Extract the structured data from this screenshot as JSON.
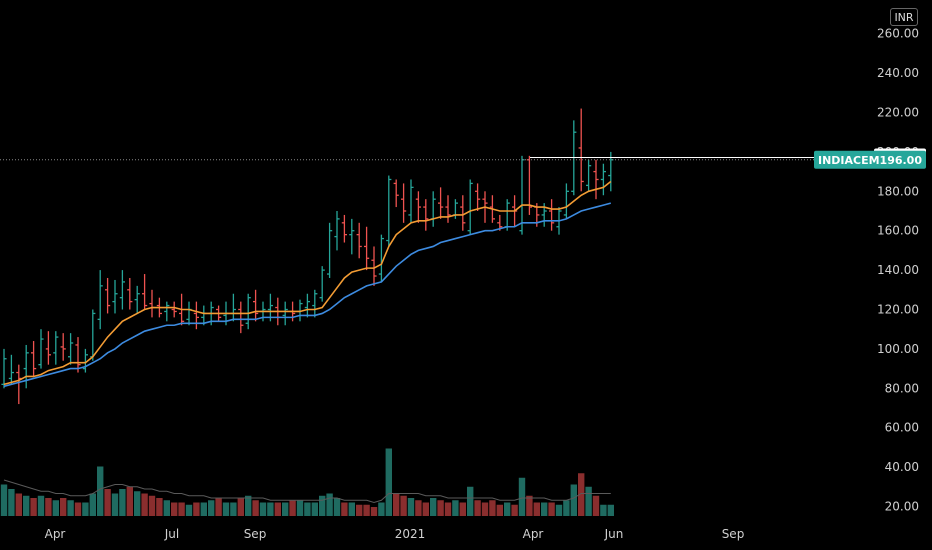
{
  "currency": "INR",
  "ticker": "INDIACEM",
  "last_price_label": "196.00",
  "level_label": "197.15",
  "chart_data": {
    "type": "ohlc",
    "ylim": [
      14,
      266
    ],
    "yticks": [
      "260.00",
      "240.00",
      "220.00",
      "200.00",
      "180.00",
      "160.00",
      "140.00",
      "120.00",
      "100.00",
      "80.00",
      "60.00",
      "40.00",
      "20.00"
    ],
    "xticks": [
      "Apr",
      "Jul",
      "Sep",
      "2021",
      "Apr",
      "Jun",
      "Sep"
    ],
    "ohlc": [
      [
        82,
        100,
        80,
        95
      ],
      [
        85,
        97,
        82,
        88
      ],
      [
        88,
        92,
        72,
        85
      ],
      [
        90,
        102,
        80,
        98
      ],
      [
        98,
        104,
        86,
        90
      ],
      [
        92,
        110,
        90,
        105
      ],
      [
        100,
        109,
        92,
        97
      ],
      [
        98,
        109,
        92,
        106
      ],
      [
        101,
        108,
        94,
        100
      ],
      [
        96,
        108,
        92,
        103
      ],
      [
        102,
        106,
        88,
        92
      ],
      [
        90,
        100,
        88,
        97
      ],
      [
        96,
        120,
        94,
        118
      ],
      [
        115,
        140,
        110,
        132
      ],
      [
        130,
        136,
        118,
        122
      ],
      [
        124,
        135,
        118,
        128
      ],
      [
        126,
        140,
        120,
        134
      ],
      [
        130,
        136,
        120,
        124
      ],
      [
        125,
        132,
        118,
        128
      ],
      [
        128,
        138,
        120,
        122
      ],
      [
        123,
        130,
        116,
        121
      ],
      [
        122,
        126,
        116,
        118
      ],
      [
        119,
        124,
        114,
        122
      ],
      [
        120,
        124,
        116,
        119
      ],
      [
        118,
        128,
        112,
        114
      ],
      [
        115,
        124,
        112,
        120
      ],
      [
        118,
        124,
        110,
        116
      ],
      [
        116,
        122,
        112,
        118
      ],
      [
        118,
        124,
        112,
        121
      ],
      [
        120,
        122,
        114,
        116
      ],
      [
        117,
        124,
        112,
        118
      ],
      [
        118,
        128,
        114,
        120
      ],
      [
        120,
        124,
        108,
        112
      ],
      [
        113,
        128,
        110,
        126
      ],
      [
        124,
        130,
        114,
        118
      ],
      [
        119,
        124,
        114,
        120
      ],
      [
        120,
        128,
        114,
        122
      ],
      [
        121,
        126,
        112,
        116
      ],
      [
        117,
        124,
        112,
        120
      ],
      [
        119,
        124,
        114,
        118
      ],
      [
        119,
        125,
        114,
        123
      ],
      [
        121,
        128,
        116,
        124
      ],
      [
        122,
        130,
        116,
        128
      ],
      [
        126,
        142,
        124,
        140
      ],
      [
        138,
        164,
        136,
        160
      ],
      [
        157,
        170,
        150,
        166
      ],
      [
        164,
        168,
        154,
        158
      ],
      [
        158,
        166,
        148,
        160
      ],
      [
        158,
        164,
        146,
        152
      ],
      [
        152,
        162,
        140,
        146
      ],
      [
        145,
        152,
        132,
        137
      ],
      [
        138,
        158,
        134,
        156
      ],
      [
        155,
        188,
        152,
        186
      ],
      [
        184,
        186,
        172,
        178
      ],
      [
        176,
        184,
        164,
        170
      ],
      [
        168,
        186,
        164,
        182
      ],
      [
        176,
        180,
        164,
        172
      ],
      [
        172,
        176,
        160,
        166
      ],
      [
        166,
        180,
        162,
        176
      ],
      [
        174,
        182,
        166,
        172
      ],
      [
        172,
        178,
        164,
        168
      ],
      [
        168,
        176,
        166,
        174
      ],
      [
        172,
        178,
        160,
        164
      ],
      [
        160,
        186,
        158,
        184
      ],
      [
        180,
        184,
        170,
        176
      ],
      [
        176,
        180,
        164,
        174
      ],
      [
        172,
        178,
        164,
        166
      ],
      [
        164,
        168,
        160,
        162
      ],
      [
        162,
        176,
        160,
        174
      ],
      [
        172,
        178,
        162,
        170
      ],
      [
        160,
        198,
        158,
        196
      ],
      [
        196,
        198,
        168,
        172
      ],
      [
        172,
        174,
        162,
        168
      ],
      [
        168,
        174,
        162,
        170
      ],
      [
        170,
        176,
        160,
        164
      ],
      [
        162,
        172,
        158,
        170
      ],
      [
        168,
        184,
        166,
        180
      ],
      [
        180,
        216,
        178,
        210
      ],
      [
        202,
        222,
        180,
        185
      ],
      [
        183,
        196,
        180,
        193
      ],
      [
        190,
        196,
        176,
        186
      ],
      [
        186,
        194,
        178,
        190
      ],
      [
        188,
        200,
        180,
        196
      ]
    ],
    "ema_short": [
      82,
      83,
      84,
      86,
      86,
      87,
      89,
      90,
      91,
      93,
      93,
      93,
      96,
      101,
      106,
      110,
      114,
      116,
      118,
      120,
      121,
      121,
      121,
      121,
      120,
      120,
      119,
      118,
      118,
      118,
      118,
      118,
      118,
      118,
      119,
      119,
      119,
      119,
      119,
      119,
      119,
      120,
      120,
      121,
      126,
      131,
      136,
      139,
      140,
      141,
      141,
      143,
      152,
      158,
      161,
      164,
      165,
      165,
      166,
      167,
      167,
      168,
      168,
      170,
      171,
      172,
      171,
      170,
      170,
      170,
      173,
      173,
      172,
      172,
      171,
      171,
      172,
      175,
      178,
      180,
      181,
      182,
      185
    ],
    "ema_long": [
      81,
      82,
      83,
      84,
      85,
      86,
      87,
      88,
      89,
      90,
      90,
      91,
      93,
      95,
      98,
      100,
      103,
      105,
      107,
      109,
      110,
      111,
      112,
      112,
      113,
      113,
      113,
      113,
      114,
      114,
      114,
      115,
      115,
      115,
      115,
      116,
      116,
      116,
      116,
      116,
      117,
      117,
      117,
      118,
      120,
      123,
      126,
      128,
      130,
      132,
      133,
      134,
      138,
      142,
      145,
      148,
      150,
      151,
      152,
      154,
      155,
      156,
      157,
      158,
      159,
      160,
      160,
      161,
      162,
      162,
      164,
      164,
      164,
      165,
      165,
      165,
      166,
      168,
      170,
      171,
      172,
      173,
      174
    ],
    "volume": [
      14,
      12,
      10,
      9,
      8,
      9,
      8,
      7,
      8,
      7,
      6,
      6,
      10,
      22,
      12,
      10,
      12,
      13,
      11,
      10,
      9,
      8,
      7,
      6,
      6,
      5,
      6,
      6,
      7,
      8,
      6,
      6,
      8,
      9,
      7,
      6,
      6,
      6,
      6,
      7,
      7,
      6,
      6,
      9,
      10,
      8,
      6,
      6,
      5,
      5,
      4,
      6,
      30,
      10,
      9,
      8,
      7,
      6,
      8,
      7,
      6,
      7,
      6,
      13,
      7,
      6,
      7,
      5,
      6,
      5,
      17,
      9,
      6,
      6,
      6,
      5,
      7,
      14,
      19,
      13,
      9,
      5,
      5
    ],
    "vol_ma": [
      16,
      15,
      14,
      13,
      12,
      11,
      11,
      10,
      10,
      9,
      9,
      9,
      10,
      12,
      13,
      14,
      14,
      13,
      13,
      12,
      12,
      11,
      11,
      10,
      10,
      9,
      9,
      9,
      8,
      8,
      8,
      8,
      8,
      8,
      8,
      8,
      7,
      7,
      7,
      7,
      7,
      7,
      7,
      7,
      8,
      8,
      7,
      7,
      7,
      7,
      6,
      7,
      10,
      10,
      10,
      10,
      10,
      9,
      9,
      9,
      8,
      8,
      8,
      8,
      8,
      8,
      8,
      7,
      7,
      7,
      8,
      8,
      8,
      8,
      7,
      7,
      7,
      8,
      10,
      10,
      10,
      10,
      10
    ]
  }
}
